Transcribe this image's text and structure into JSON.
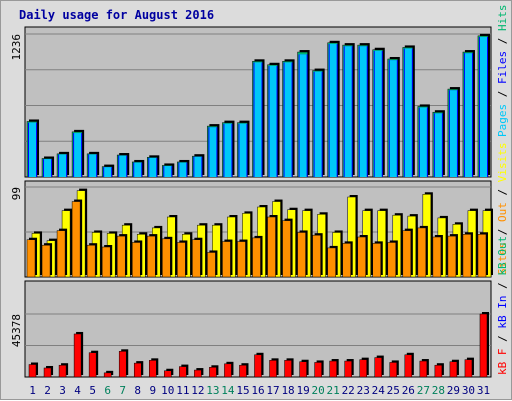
{
  "chart_data": {
    "type": "bar",
    "title": "Daily usage for August 2016",
    "x": [
      "1",
      "2",
      "3",
      "4",
      "5",
      "6",
      "7",
      "8",
      "9",
      "10",
      "11",
      "12",
      "13",
      "14",
      "15",
      "16",
      "17",
      "18",
      "19",
      "20",
      "21",
      "22",
      "23",
      "24",
      "25",
      "26",
      "27",
      "28",
      "29",
      "30",
      "31"
    ],
    "weekend_days": [
      "6",
      "7",
      "13",
      "14",
      "20",
      "21",
      "27",
      "28"
    ],
    "panels": [
      {
        "id": "top",
        "ymax": 1236,
        "ytick_label": "1236",
        "labels": [
          "Pages",
          "Files",
          "Hits"
        ],
        "series": [
          {
            "name": "Hits",
            "values": [
              480,
              160,
              200,
              390,
              200,
              90,
              190,
              130,
              170,
              100,
              130,
              180,
              440,
              470,
              470,
              1000,
              970,
              1000,
              1080,
              920,
              1160,
              1140,
              1140,
              1100,
              1020,
              1120,
              610,
              560,
              760,
              1080,
              1220
            ]
          },
          {
            "name": "Files",
            "values": [
              470,
              155,
              195,
              380,
              195,
              85,
              185,
              125,
              165,
              95,
              125,
              175,
              430,
              460,
              460,
              990,
              960,
              990,
              1060,
              910,
              1150,
              1130,
              1130,
              1090,
              1010,
              1110,
              600,
              550,
              750,
              1070,
              1210
            ]
          },
          {
            "name": "Pages",
            "values": [
              470,
              155,
              195,
              380,
              195,
              85,
              185,
              125,
              165,
              95,
              125,
              175,
              430,
              460,
              460,
              990,
              960,
              990,
              1060,
              910,
              1150,
              1130,
              1130,
              1090,
              1010,
              1110,
              600,
              550,
              750,
              1070,
              1210
            ]
          }
        ]
      },
      {
        "id": "middle",
        "ymax": 99,
        "ytick_label": "99",
        "labels": [
          "Sites",
          "Out",
          "Visits"
        ],
        "series": [
          {
            "name": "Visits",
            "values": [
              48,
              40,
              73,
              95,
              49,
              48,
              57,
              47,
              54,
              66,
              47,
              57,
              57,
              66,
              70,
              77,
              83,
              74,
              73,
              69,
              49,
              88,
              73,
              73,
              68,
              67,
              91,
              65,
              58,
              73,
              73
            ]
          },
          {
            "name": "Sites",
            "values": [
              41,
              35,
              51,
              83,
              35,
              33,
              45,
              38,
              45,
              42,
              38,
              41,
              27,
              39,
              39,
              43,
              66,
              62,
              49,
              46,
              32,
              37,
              44,
              37,
              38,
              51,
              54,
              44,
              45,
              47,
              47
            ]
          }
        ]
      },
      {
        "id": "bottom",
        "ymax": 45378,
        "ytick_label": "45378",
        "labels": [
          "kB F",
          "kB In",
          "kB Out"
        ],
        "series": [
          {
            "name": "kB F",
            "values": [
              9000,
              6500,
              8500,
              31000,
              17500,
              3000,
              18500,
              10000,
              12000,
              4500,
              7500,
              5000,
              7000,
              9500,
              8500,
              16000,
              12000,
              12000,
              11000,
              10500,
              11500,
              11500,
              12500,
              14000,
              10500,
              16000,
              11500,
              8500,
              11000,
              12500,
              45378
            ]
          }
        ]
      }
    ],
    "colors": {
      "hits": "#00b870",
      "files": "#0000ff",
      "pages": "#00c8f8",
      "visits": "#ffff00",
      "sites": "#ff9000",
      "kb": "#ff0000",
      "weekend": "#00805c",
      "weekday": "#000080",
      "plot_bg": "#c0c0c0",
      "outer_bg": "#dcdcdc"
    }
  }
}
